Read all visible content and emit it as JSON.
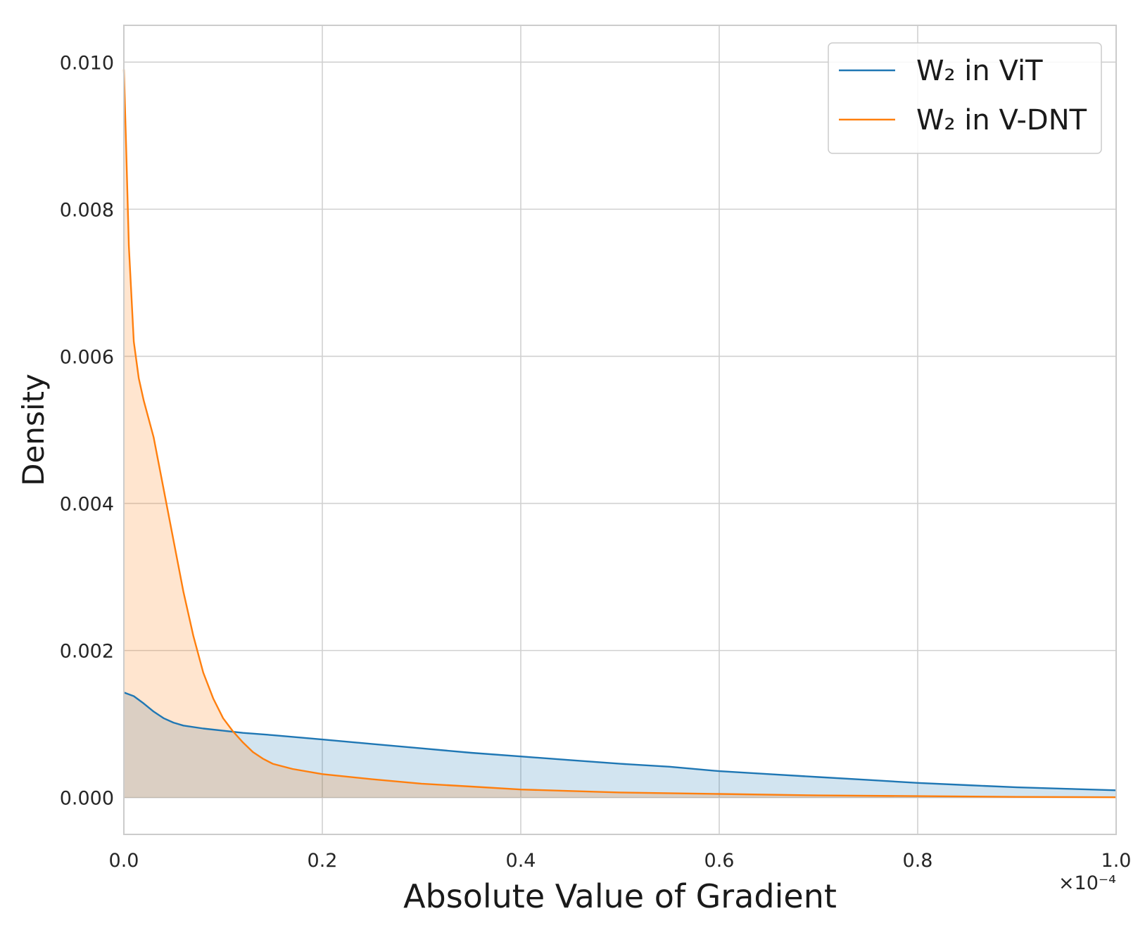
{
  "chart_data": {
    "type": "area",
    "xlabel": "Absolute Value of Gradient",
    "ylabel": "Density",
    "x_scale_label": "×10⁻⁴",
    "xlim": [
      0.0,
      1.0
    ],
    "ylim": [
      -0.0005,
      0.0105
    ],
    "xticks": [
      "0.0",
      "0.2",
      "0.4",
      "0.6",
      "0.8",
      "1.0"
    ],
    "yticks": [
      "0.000",
      "0.002",
      "0.004",
      "0.006",
      "0.008",
      "0.010"
    ],
    "grid": true,
    "legend_position": "top-right",
    "series": [
      {
        "name": "W₂ in ViT",
        "color": "#1f77b4",
        "fill": "#c9deee",
        "x": [
          0.0,
          0.01,
          0.02,
          0.03,
          0.04,
          0.05,
          0.06,
          0.08,
          0.1,
          0.12,
          0.15,
          0.2,
          0.25,
          0.3,
          0.35,
          0.4,
          0.45,
          0.5,
          0.55,
          0.6,
          0.65,
          0.7,
          0.75,
          0.8,
          0.85,
          0.9,
          0.95,
          1.0
        ],
        "values": [
          0.00143,
          0.00138,
          0.00128,
          0.00117,
          0.00108,
          0.00102,
          0.00098,
          0.00094,
          0.00091,
          0.00088,
          0.00085,
          0.00079,
          0.00073,
          0.00067,
          0.00061,
          0.00056,
          0.00051,
          0.00046,
          0.00042,
          0.00036,
          0.00032,
          0.00028,
          0.00024,
          0.0002,
          0.00017,
          0.00014,
          0.00012,
          0.0001
        ]
      },
      {
        "name": "W₂ in V-DNT",
        "color": "#ff7f0e",
        "fill": "#fcd9c0",
        "x": [
          0.0,
          0.002,
          0.005,
          0.01,
          0.015,
          0.02,
          0.03,
          0.04,
          0.05,
          0.06,
          0.07,
          0.08,
          0.09,
          0.1,
          0.11,
          0.12,
          0.13,
          0.14,
          0.15,
          0.17,
          0.2,
          0.25,
          0.3,
          0.35,
          0.4,
          0.45,
          0.5,
          0.6,
          0.7,
          0.8,
          0.9,
          1.0
        ],
        "values": [
          0.0099,
          0.009,
          0.0075,
          0.0062,
          0.0057,
          0.0054,
          0.0049,
          0.0042,
          0.0035,
          0.0028,
          0.0022,
          0.0017,
          0.00135,
          0.00108,
          0.0009,
          0.00075,
          0.00062,
          0.00053,
          0.00046,
          0.00039,
          0.00032,
          0.00025,
          0.00019,
          0.00015,
          0.00011,
          9e-05,
          7e-05,
          5e-05,
          3e-05,
          2e-05,
          1e-05,
          5e-06
        ]
      }
    ]
  }
}
